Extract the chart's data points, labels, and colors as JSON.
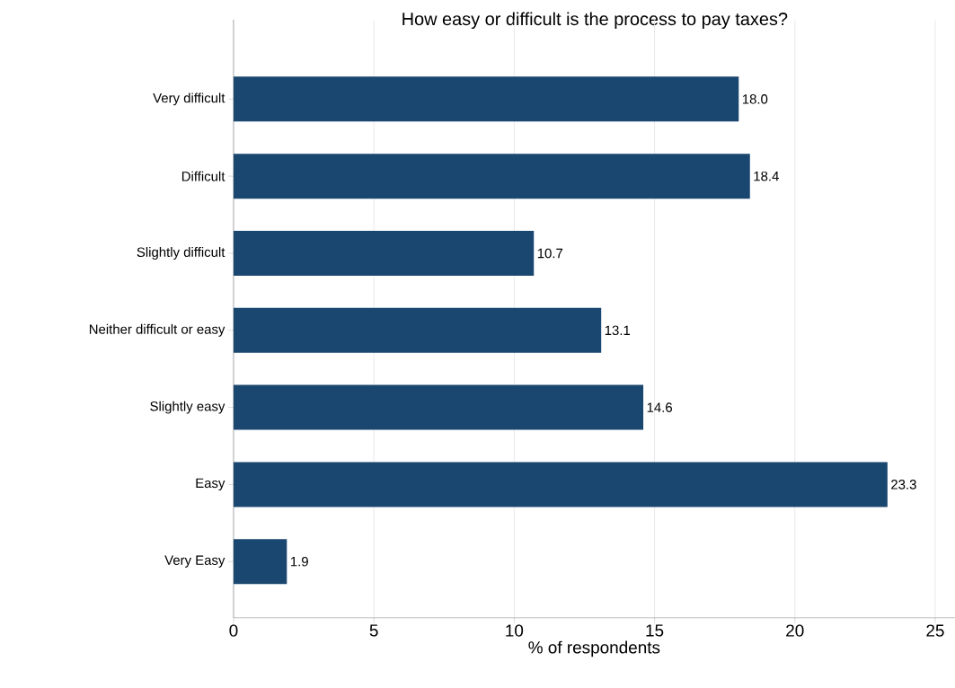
{
  "chart_data": {
    "type": "bar",
    "orientation": "horizontal",
    "title": "How easy or difficult is the process to pay taxes?",
    "xlabel": "% of respondents",
    "categories": [
      "Very difficult",
      "Difficult",
      "Slightly difficult",
      "Neither difficult or easy",
      "Slightly easy",
      "Easy",
      "Very Easy"
    ],
    "values": [
      18.0,
      18.4,
      10.7,
      13.1,
      14.6,
      23.3,
      1.9
    ],
    "value_labels": [
      "18.0",
      "18.4",
      "10.7",
      "13.1",
      "14.6",
      "23.3",
      "1.9"
    ],
    "color": "#1a476f",
    "xlim": [
      0,
      25.7
    ],
    "xticks": [
      0,
      5,
      10,
      15,
      20,
      25
    ],
    "grid": "x"
  }
}
